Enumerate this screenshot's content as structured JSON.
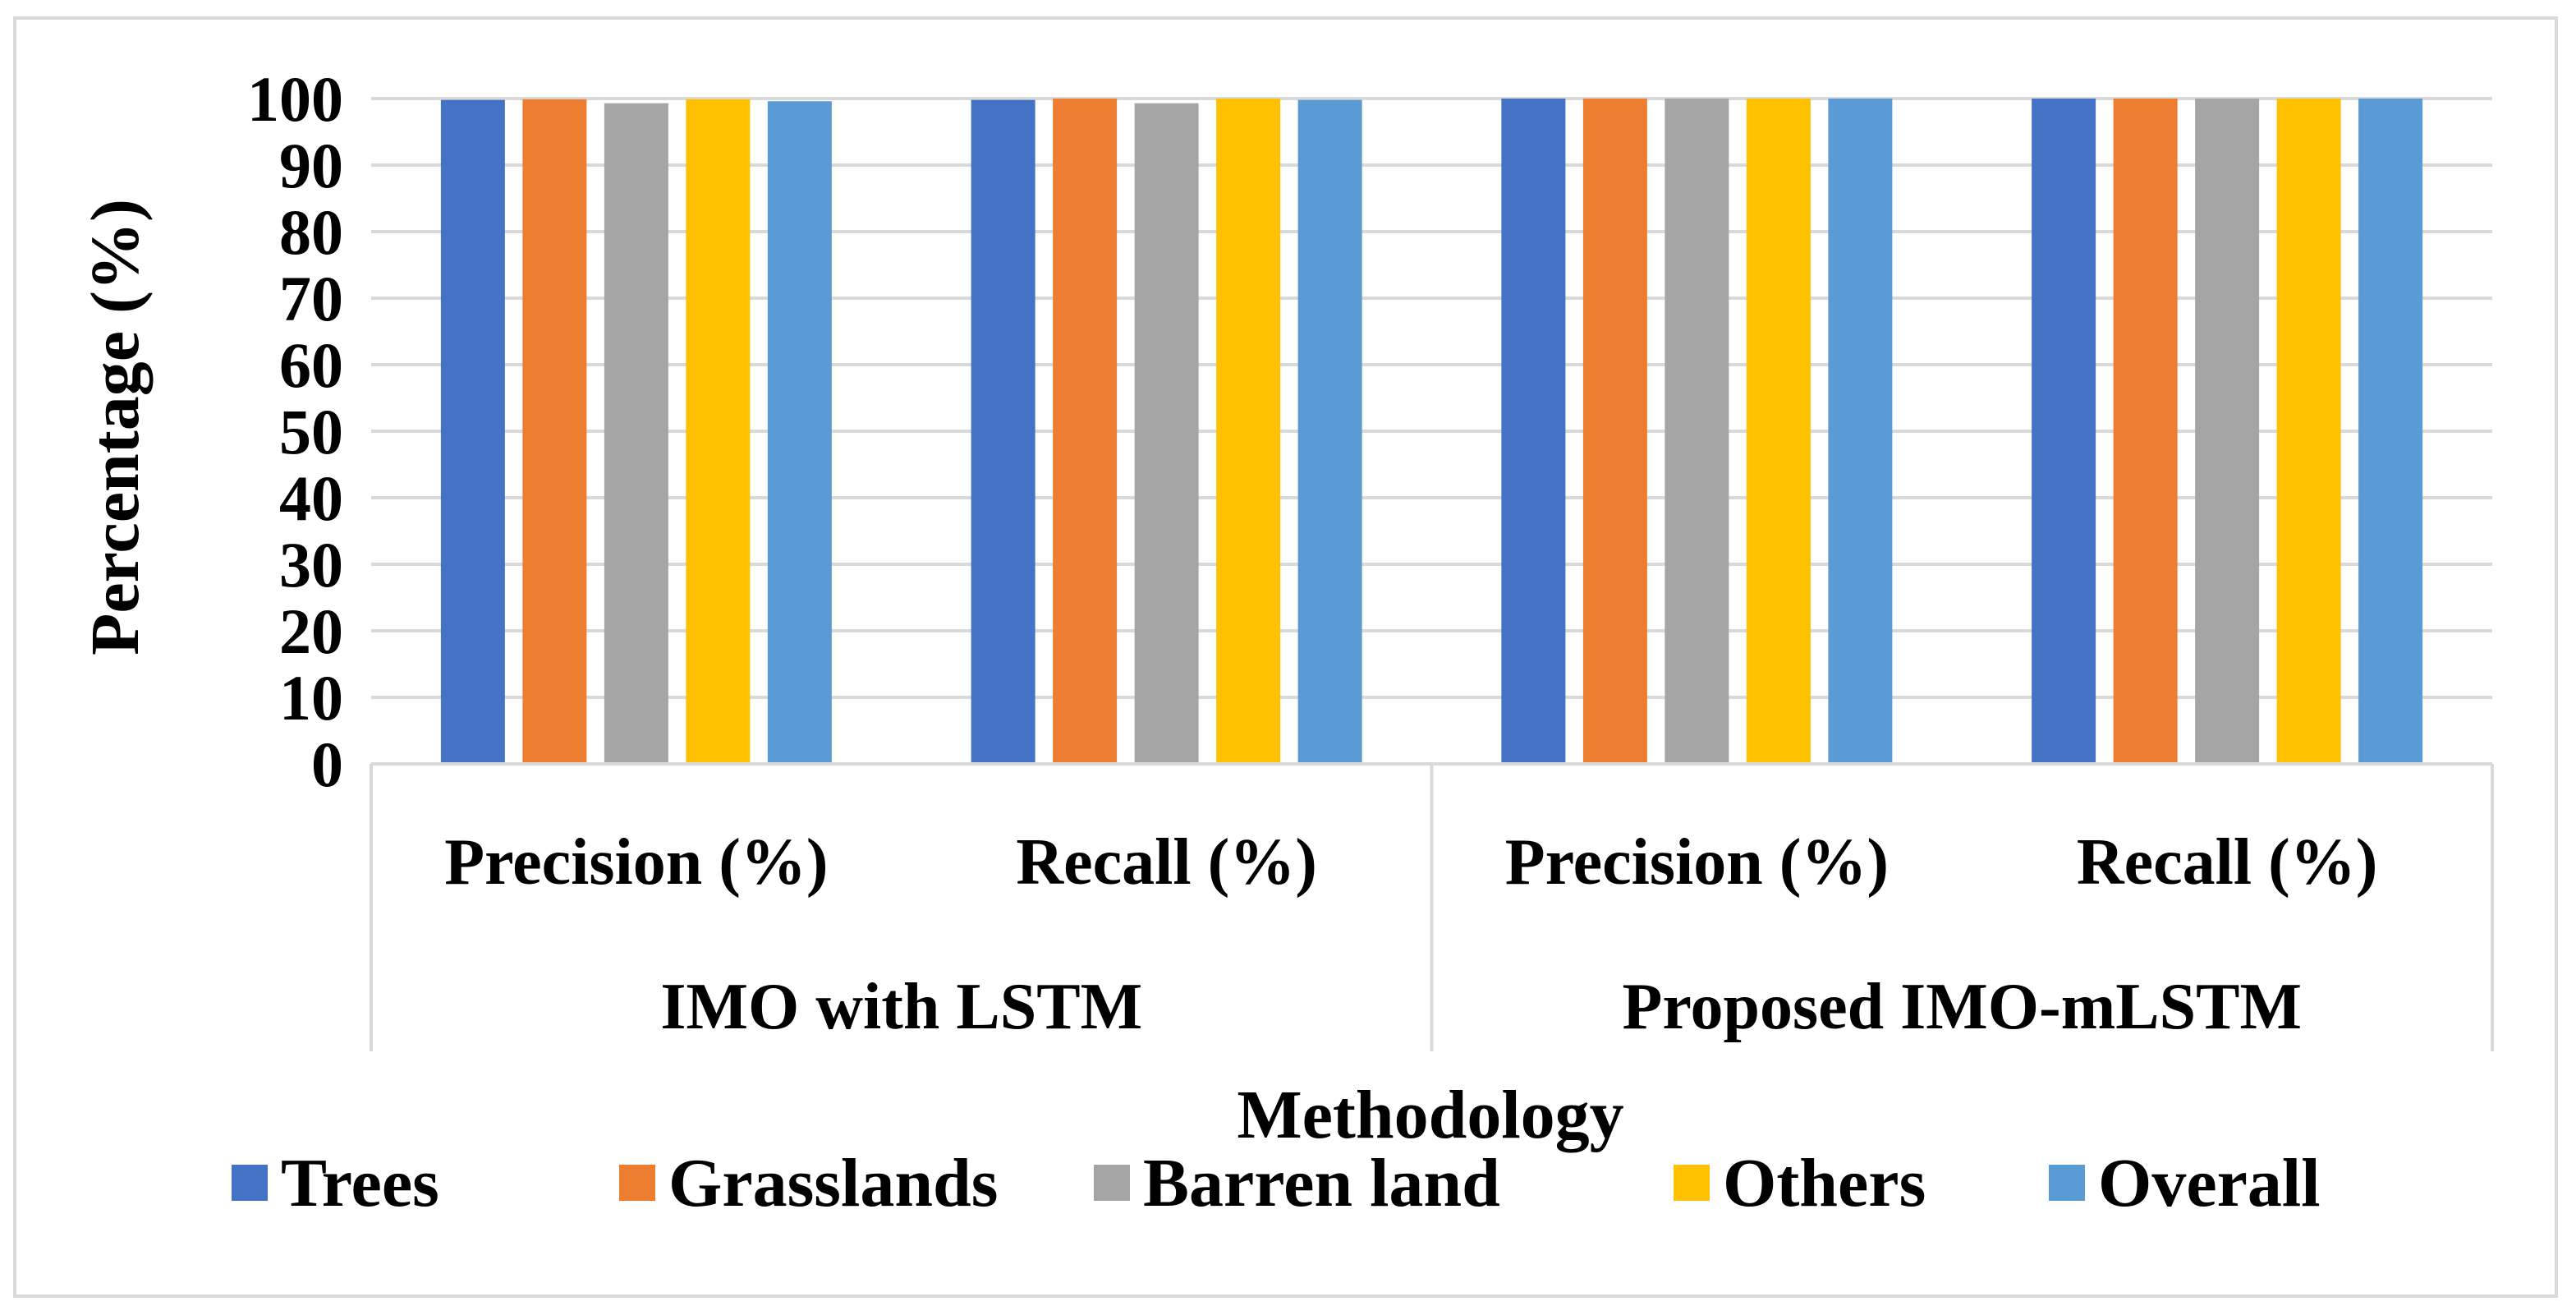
{
  "chart_data": {
    "type": "bar",
    "title": "",
    "xlabel": "Methodology",
    "ylabel": "Percentage (%)",
    "ylim": [
      0,
      100
    ],
    "yticks": [
      0,
      10,
      20,
      30,
      40,
      50,
      60,
      70,
      80,
      90,
      100
    ],
    "grid": true,
    "legend_position": "bottom",
    "groups": [
      {
        "label": "IMO with LSTM",
        "categories": [
          "Precision (%)",
          "Recall (%)"
        ]
      },
      {
        "label": "Proposed IMO-mLSTM",
        "categories": [
          "Precision (%)",
          "Recall (%)"
        ]
      }
    ],
    "categories": [
      "Precision (%)",
      "Recall (%)",
      "Precision (%)",
      "Recall (%)"
    ],
    "series": [
      {
        "name": "Trees",
        "color": "#4472c4",
        "values": [
          99.8,
          99.8,
          100,
          100
        ]
      },
      {
        "name": "Grasslands",
        "color": "#ed7d31",
        "values": [
          99.9,
          100,
          100,
          100
        ]
      },
      {
        "name": "Barren land",
        "color": "#a5a5a5",
        "values": [
          99.3,
          99.3,
          100,
          100
        ]
      },
      {
        "name": "Others",
        "color": "#ffc000",
        "values": [
          99.9,
          100,
          100,
          100
        ]
      },
      {
        "name": "Overall",
        "color": "#5b9bd5",
        "values": [
          99.6,
          99.8,
          100,
          100
        ]
      }
    ]
  }
}
